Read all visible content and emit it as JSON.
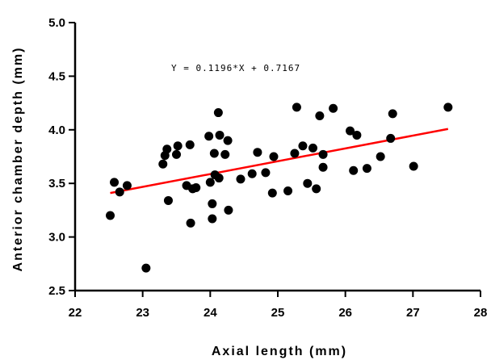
{
  "chart_data": {
    "type": "scatter",
    "xlabel": "Axial length (mm)",
    "ylabel": "Anterior chamber depth (mm)",
    "xlim": [
      22,
      28
    ],
    "ylim": [
      2.5,
      5.0
    ],
    "x_ticks": [
      "22",
      "23",
      "24",
      "25",
      "26",
      "27",
      "28"
    ],
    "y_ticks": [
      "2.5",
      "3.0",
      "3.5",
      "4.0",
      "4.5",
      "5.0"
    ],
    "annotation": "Y = 0.1196*X + 0.7167",
    "regression": {
      "slope": 0.1196,
      "intercept": 0.7167,
      "x_range": [
        22.52,
        27.52
      ],
      "color": "#ff0000"
    },
    "point_color": "#000000",
    "points": [
      {
        "x": 22.52,
        "y": 3.2
      },
      {
        "x": 22.58,
        "y": 3.51
      },
      {
        "x": 22.66,
        "y": 3.42
      },
      {
        "x": 22.77,
        "y": 3.48
      },
      {
        "x": 23.05,
        "y": 2.71
      },
      {
        "x": 23.3,
        "y": 3.68
      },
      {
        "x": 23.33,
        "y": 3.76
      },
      {
        "x": 23.36,
        "y": 3.82
      },
      {
        "x": 23.38,
        "y": 3.34
      },
      {
        "x": 23.5,
        "y": 3.77
      },
      {
        "x": 23.52,
        "y": 3.85
      },
      {
        "x": 23.65,
        "y": 3.48
      },
      {
        "x": 23.7,
        "y": 3.86
      },
      {
        "x": 23.71,
        "y": 3.13
      },
      {
        "x": 23.74,
        "y": 3.45
      },
      {
        "x": 23.79,
        "y": 3.46
      },
      {
        "x": 23.98,
        "y": 3.94
      },
      {
        "x": 24.0,
        "y": 3.51
      },
      {
        "x": 24.03,
        "y": 3.17
      },
      {
        "x": 24.03,
        "y": 3.31
      },
      {
        "x": 24.06,
        "y": 3.78
      },
      {
        "x": 24.07,
        "y": 3.58
      },
      {
        "x": 24.12,
        "y": 4.16
      },
      {
        "x": 24.13,
        "y": 3.55
      },
      {
        "x": 24.14,
        "y": 3.95
      },
      {
        "x": 24.22,
        "y": 3.77
      },
      {
        "x": 24.26,
        "y": 3.9
      },
      {
        "x": 24.27,
        "y": 3.25
      },
      {
        "x": 24.45,
        "y": 3.54
      },
      {
        "x": 24.62,
        "y": 3.59
      },
      {
        "x": 24.7,
        "y": 3.79
      },
      {
        "x": 24.82,
        "y": 3.6
      },
      {
        "x": 24.92,
        "y": 3.41
      },
      {
        "x": 24.94,
        "y": 3.75
      },
      {
        "x": 25.15,
        "y": 3.43
      },
      {
        "x": 25.25,
        "y": 3.78
      },
      {
        "x": 25.28,
        "y": 4.21
      },
      {
        "x": 25.37,
        "y": 3.85
      },
      {
        "x": 25.44,
        "y": 3.5
      },
      {
        "x": 25.52,
        "y": 3.83
      },
      {
        "x": 25.57,
        "y": 3.45
      },
      {
        "x": 25.62,
        "y": 4.13
      },
      {
        "x": 25.67,
        "y": 3.65
      },
      {
        "x": 25.67,
        "y": 3.77
      },
      {
        "x": 25.82,
        "y": 4.2
      },
      {
        "x": 26.07,
        "y": 3.99
      },
      {
        "x": 26.12,
        "y": 3.62
      },
      {
        "x": 26.17,
        "y": 3.95
      },
      {
        "x": 26.32,
        "y": 3.64
      },
      {
        "x": 26.52,
        "y": 3.75
      },
      {
        "x": 26.67,
        "y": 3.92
      },
      {
        "x": 26.7,
        "y": 4.15
      },
      {
        "x": 27.01,
        "y": 3.66
      },
      {
        "x": 27.52,
        "y": 4.21
      }
    ]
  }
}
